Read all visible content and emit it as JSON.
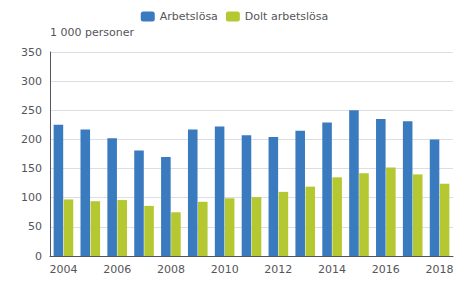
{
  "chart_data": {
    "type": "bar",
    "ylabel": "1 000 personer",
    "categories": [
      "2004",
      null,
      "2006",
      null,
      "2008",
      null,
      "2010",
      null,
      "2012",
      null,
      "2014",
      null,
      "2016",
      null,
      "2018"
    ],
    "series": [
      {
        "name": "Arbetslösa",
        "color": "#3a7bbf",
        "values": [
          225,
          217,
          202,
          181,
          170,
          217,
          222,
          207,
          204,
          215,
          229,
          250,
          235,
          231,
          200
        ]
      },
      {
        "name": "Dolt arbetslösa",
        "color": "#b5c832",
        "values": [
          97,
          94,
          96,
          86,
          75,
          93,
          99,
          101,
          110,
          119,
          135,
          142,
          152,
          140,
          124
        ]
      }
    ],
    "ylim": [
      0,
      350
    ],
    "yticks": [
      0,
      50,
      100,
      150,
      200,
      250,
      300,
      350
    ],
    "grid": true,
    "legend": "top"
  }
}
